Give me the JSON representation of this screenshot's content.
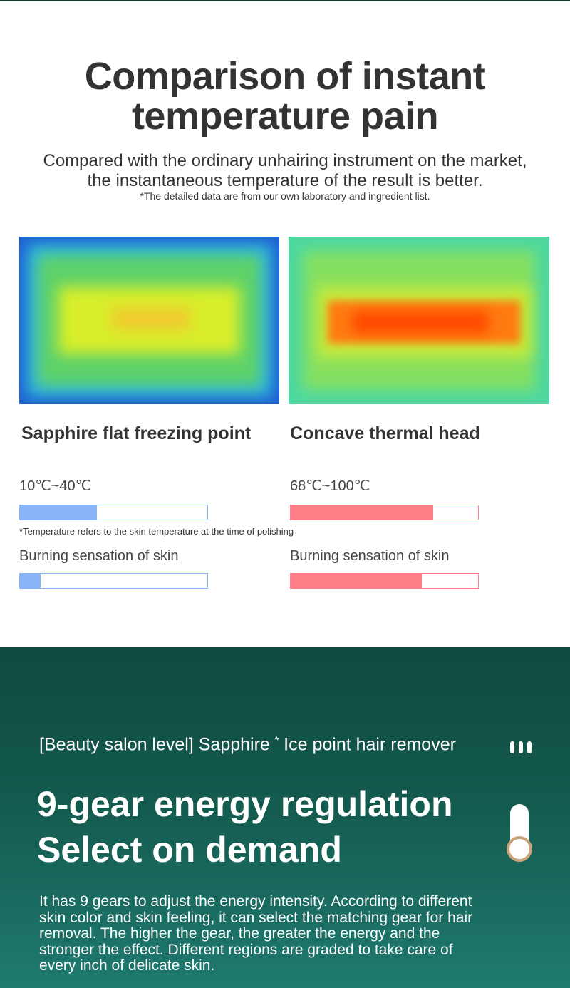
{
  "header": {
    "title_lines": [
      "Comparison of instant",
      "temperature pain"
    ],
    "subtitle_lines": [
      "Compared with the ordinary unhairing instrument on the market,",
      "the instantaneous temperature of the result is better."
    ],
    "note": "*The detailed data are from our own laboratory and ingredient list."
  },
  "comparison": {
    "items": [
      {
        "label": "Sapphire flat freezing point",
        "temperature": "10℃~40℃",
        "temperature_level": 0.41,
        "burning_label": "Burning sensation of skin",
        "burning_level": 0.11
      },
      {
        "label": "Concave thermal head",
        "temperature": "68℃~100℃",
        "temperature_level": 0.76,
        "burning_label": "Burning sensation of skin",
        "burning_level": 0.7
      }
    ],
    "note": "*Temperature refers to the skin temperature at the time of polishing"
  },
  "feature": {
    "tagline_parts": [
      "[Beauty salon level] Sapphire ",
      "*",
      " Ice point hair remover"
    ],
    "title_lines": [
      "9-gear energy regulation",
      "Select on demand"
    ],
    "body_lines": [
      "It has 9 gears to adjust the energy intensity. According to different",
      "skin color and skin feeling, it can select the matching gear for hair",
      "removal. The higher the gear, the greater the energy and the",
      "stronger the effect. Different regions are graded to take care of",
      "every inch of delicate skin."
    ]
  }
}
